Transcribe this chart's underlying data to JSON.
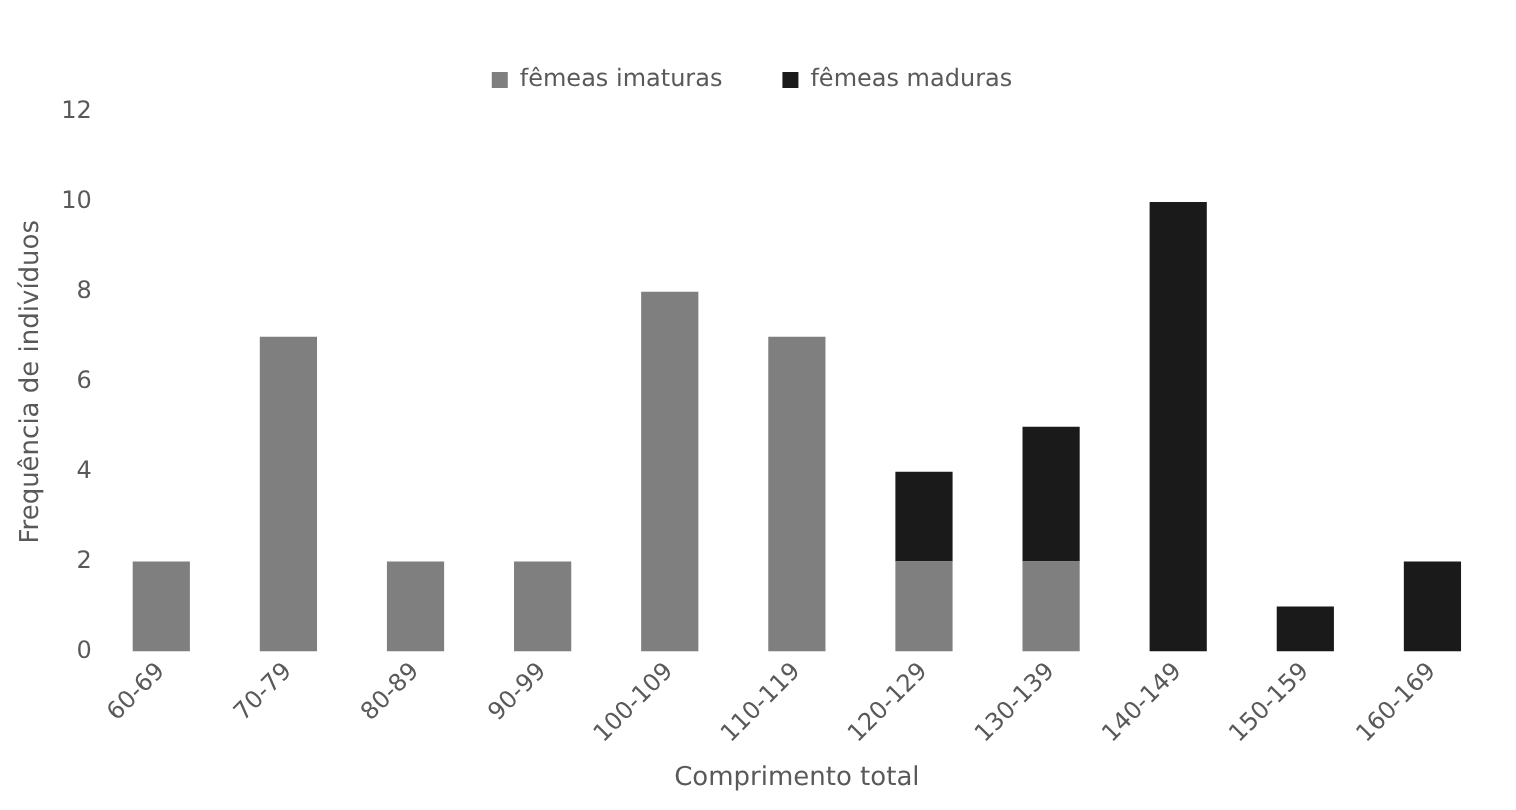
{
  "chart_data": {
    "type": "bar",
    "stacked": true,
    "xlabel": "Comprimento total",
    "ylabel": "Frequência de indivíduos",
    "categories": [
      "60-69",
      "70-79",
      "80-89",
      "90-99",
      "100-109",
      "110-119",
      "120-129",
      "130-139",
      "140-149",
      "150-159",
      "160-169"
    ],
    "series": [
      {
        "name": "fêmeas imaturas",
        "color": "#7f7f7f",
        "values": [
          2,
          7,
          2,
          2,
          8,
          7,
          2,
          2,
          0,
          0,
          0
        ]
      },
      {
        "name": "fêmeas maduras",
        "color": "#1a1a1a",
        "values": [
          0,
          0,
          0,
          0,
          0,
          0,
          2,
          3,
          10,
          1,
          2
        ]
      }
    ],
    "ylim": [
      0,
      12
    ],
    "yticks": [
      0,
      2,
      4,
      6,
      8,
      10,
      12
    ],
    "grid": false,
    "legend": "top"
  }
}
